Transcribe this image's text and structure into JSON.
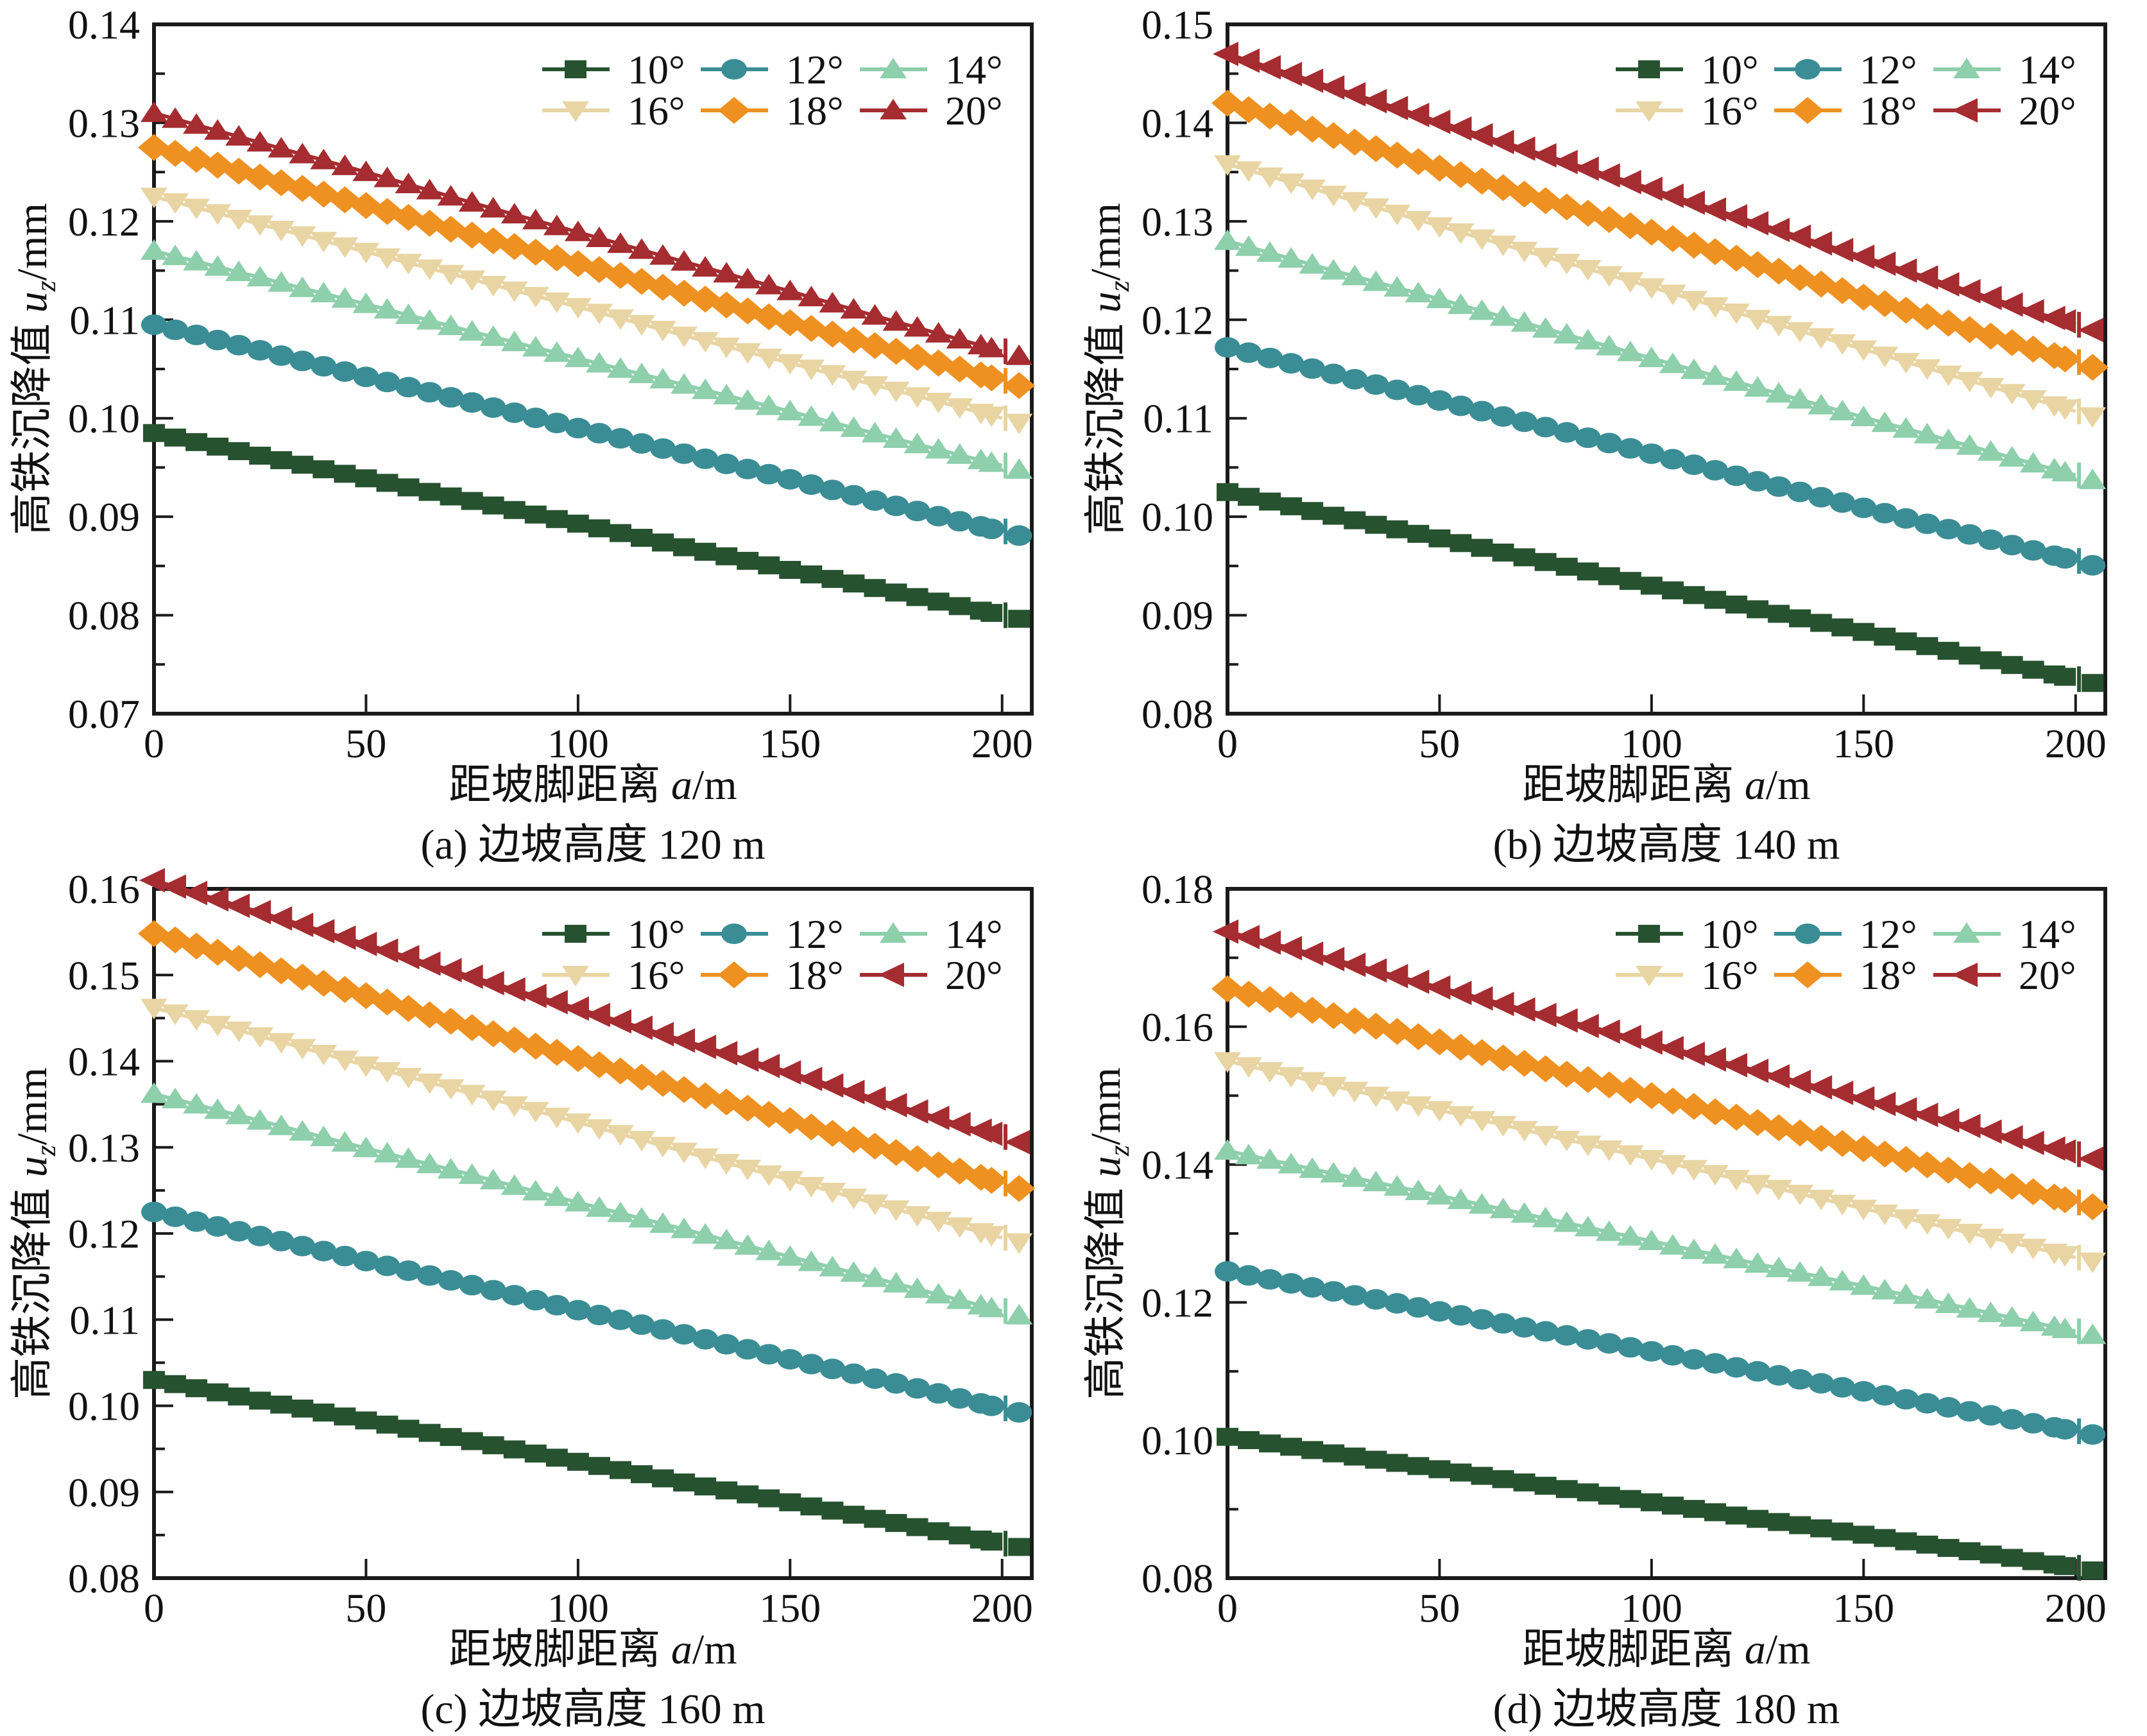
{
  "figure": {
    "background": "#ffffff",
    "text_color": "#111111",
    "axis_color": "#1a1a1a",
    "xlabel_main": "距坡脚距离 ",
    "xlabel_var": "a",
    "xlabel_unit": "/m",
    "ylabel_main": "高铁沉降值 ",
    "ylabel_var": "u",
    "ylabel_sub": "z",
    "ylabel_unit": "/mm"
  },
  "chart_data": [
    {
      "id": "a",
      "type": "line",
      "title": "(a) 边坡高度 120 m",
      "xlabel": "距坡脚距离 a/m",
      "ylabel": "高铁沉降值 uz/mm",
      "xlim": [
        0,
        207
      ],
      "ylim": [
        0.07,
        0.14
      ],
      "xticks": [
        0,
        50,
        100,
        150,
        200
      ],
      "ytick_step": 0.01,
      "yminor_step": 0.005,
      "legend_position": "top-right",
      "grid": false,
      "x": [
        0,
        25,
        50,
        75,
        100,
        125,
        150,
        175,
        200
      ],
      "series": [
        {
          "name": "10°",
          "color": "#275230",
          "marker": "square",
          "values": [
            0.0985,
            0.0962,
            0.0939,
            0.0916,
            0.0893,
            0.0869,
            0.0846,
            0.0823,
            0.08
          ]
        },
        {
          "name": "12°",
          "color": "#3a8d95",
          "marker": "circle",
          "values": [
            0.1095,
            0.1069,
            0.1042,
            0.1016,
            0.099,
            0.0964,
            0.0938,
            0.0911,
            0.0885
          ]
        },
        {
          "name": "14°",
          "color": "#8ecfac",
          "marker": "triangle-up",
          "values": [
            0.117,
            0.1143,
            0.1116,
            0.1088,
            0.1061,
            0.1034,
            0.1007,
            0.0979,
            0.0952
          ]
        },
        {
          "name": "16°",
          "color": "#e8d5a3",
          "marker": "triangle-down",
          "values": [
            0.1225,
            0.1197,
            0.1169,
            0.1141,
            0.1113,
            0.1084,
            0.1056,
            0.1028,
            0.1
          ]
        },
        {
          "name": "18°",
          "color": "#ee9121",
          "marker": "diamond",
          "values": [
            0.1275,
            0.1245,
            0.1216,
            0.1186,
            0.1157,
            0.1127,
            0.1097,
            0.1068,
            0.1038
          ]
        },
        {
          "name": "20°",
          "color": "#a52c30",
          "marker": "triangle-up",
          "values": [
            0.131,
            0.128,
            0.125,
            0.1219,
            0.1189,
            0.1159,
            0.1129,
            0.1098,
            0.1068
          ]
        }
      ]
    },
    {
      "id": "b",
      "type": "line",
      "title": "(b) 边坡高度 140 m",
      "xlabel": "距坡脚距离 a/m",
      "ylabel": "高铁沉降值 uz/mm",
      "xlim": [
        0,
        207
      ],
      "ylim": [
        0.08,
        0.15
      ],
      "xticks": [
        0,
        50,
        100,
        150,
        200
      ],
      "ytick_step": 0.01,
      "yminor_step": 0.005,
      "legend_position": "top-right",
      "grid": false,
      "x": [
        0,
        25,
        50,
        75,
        100,
        125,
        150,
        175,
        200
      ],
      "series": [
        {
          "name": "10°",
          "color": "#275230",
          "marker": "square",
          "values": [
            0.1025,
            0.1001,
            0.0978,
            0.0954,
            0.093,
            0.0906,
            0.0883,
            0.0859,
            0.0835
          ]
        },
        {
          "name": "12°",
          "color": "#3a8d95",
          "marker": "circle",
          "values": [
            0.1172,
            0.1145,
            0.1118,
            0.1091,
            0.1064,
            0.1036,
            0.1009,
            0.0982,
            0.0955
          ]
        },
        {
          "name": "14°",
          "color": "#8ecfac",
          "marker": "triangle-up",
          "values": [
            0.128,
            0.125,
            0.1221,
            0.1191,
            0.1161,
            0.1131,
            0.1101,
            0.1072,
            0.1042
          ]
        },
        {
          "name": "16°",
          "color": "#e8d5a3",
          "marker": "triangle-down",
          "values": [
            0.1358,
            0.1327,
            0.1295,
            0.1264,
            0.1233,
            0.1201,
            0.117,
            0.1138,
            0.1107
          ]
        },
        {
          "name": "18°",
          "color": "#ee9121",
          "marker": "diamond",
          "values": [
            0.142,
            0.1387,
            0.1354,
            0.1321,
            0.1289,
            0.1256,
            0.1223,
            0.119,
            0.1157
          ]
        },
        {
          "name": "20°",
          "color": "#a52c30",
          "marker": "triangle-left",
          "values": [
            0.147,
            0.1436,
            0.1401,
            0.1367,
            0.1333,
            0.1298,
            0.1264,
            0.1229,
            0.1195
          ]
        }
      ]
    },
    {
      "id": "c",
      "type": "line",
      "title": "(c) 边坡高度 160 m",
      "xlabel": "距坡脚距离 a/m",
      "ylabel": "高铁沉降值 uz/mm",
      "xlim": [
        0,
        207
      ],
      "ylim": [
        0.08,
        0.16
      ],
      "xticks": [
        0,
        50,
        100,
        150,
        200
      ],
      "ytick_step": 0.01,
      "yminor_step": 0.005,
      "legend_position": "top-right",
      "grid": false,
      "x": [
        0,
        25,
        50,
        75,
        100,
        125,
        150,
        175,
        200
      ],
      "series": [
        {
          "name": "10°",
          "color": "#275230",
          "marker": "square",
          "values": [
            0.103,
            0.1006,
            0.0983,
            0.0959,
            0.0935,
            0.0911,
            0.0888,
            0.0864,
            0.084
          ]
        },
        {
          "name": "12°",
          "color": "#3a8d95",
          "marker": "circle",
          "values": [
            0.1225,
            0.1197,
            0.1168,
            0.114,
            0.1111,
            0.1083,
            0.1054,
            0.1026,
            0.0997
          ]
        },
        {
          "name": "14°",
          "color": "#8ecfac",
          "marker": "triangle-up",
          "values": [
            0.1362,
            0.1331,
            0.1299,
            0.1268,
            0.1236,
            0.1205,
            0.1173,
            0.1142,
            0.111
          ]
        },
        {
          "name": "16°",
          "color": "#e8d5a3",
          "marker": "triangle-down",
          "values": [
            0.1462,
            0.1429,
            0.1395,
            0.1362,
            0.1329,
            0.1295,
            0.1262,
            0.1228,
            0.1195
          ]
        },
        {
          "name": "18°",
          "color": "#ee9121",
          "marker": "diamond",
          "values": [
            0.1548,
            0.1512,
            0.1476,
            0.1439,
            0.1403,
            0.1367,
            0.1331,
            0.1294,
            0.1258
          ]
        },
        {
          "name": "20°",
          "color": "#a52c30",
          "marker": "triangle-left",
          "values": [
            0.161,
            0.1573,
            0.1536,
            0.1498,
            0.1461,
            0.1424,
            0.1387,
            0.1349,
            0.1312
          ]
        }
      ]
    },
    {
      "id": "d",
      "type": "line",
      "title": "(d) 边坡高度 180 m",
      "xlabel": "距坡脚距离 a/m",
      "ylabel": "高铁沉降值 uz/mm",
      "xlim": [
        0,
        207
      ],
      "ylim": [
        0.08,
        0.18
      ],
      "xticks": [
        0,
        50,
        100,
        150,
        200
      ],
      "ytick_step": 0.02,
      "yminor_step": 0.01,
      "legend_position": "top-right",
      "grid": false,
      "x": [
        0,
        25,
        50,
        75,
        100,
        125,
        150,
        175,
        200
      ],
      "series": [
        {
          "name": "10°",
          "color": "#275230",
          "marker": "square",
          "values": [
            0.1005,
            0.0981,
            0.0958,
            0.0934,
            0.091,
            0.0886,
            0.0863,
            0.0839,
            0.0815
          ]
        },
        {
          "name": "12°",
          "color": "#3a8d95",
          "marker": "circle",
          "values": [
            0.1245,
            0.1216,
            0.1187,
            0.1158,
            0.1129,
            0.11,
            0.1071,
            0.1042,
            0.1013
          ]
        },
        {
          "name": "14°",
          "color": "#8ecfac",
          "marker": "triangle-up",
          "values": [
            0.142,
            0.1387,
            0.1355,
            0.1322,
            0.1289,
            0.1256,
            0.1224,
            0.1191,
            0.1158
          ]
        },
        {
          "name": "16°",
          "color": "#e8d5a3",
          "marker": "triangle-down",
          "values": [
            0.155,
            0.1514,
            0.1479,
            0.1443,
            0.1408,
            0.1372,
            0.1336,
            0.1301,
            0.1265
          ]
        },
        {
          "name": "18°",
          "color": "#ee9121",
          "marker": "diamond",
          "values": [
            0.1655,
            0.1616,
            0.1578,
            0.1539,
            0.15,
            0.1461,
            0.1423,
            0.1384,
            0.1345
          ]
        },
        {
          "name": "20°",
          "color": "#a52c30",
          "marker": "triangle-left",
          "values": [
            0.1738,
            0.1698,
            0.1657,
            0.1617,
            0.1577,
            0.1536,
            0.1496,
            0.1456,
            0.1415
          ]
        }
      ]
    }
  ]
}
